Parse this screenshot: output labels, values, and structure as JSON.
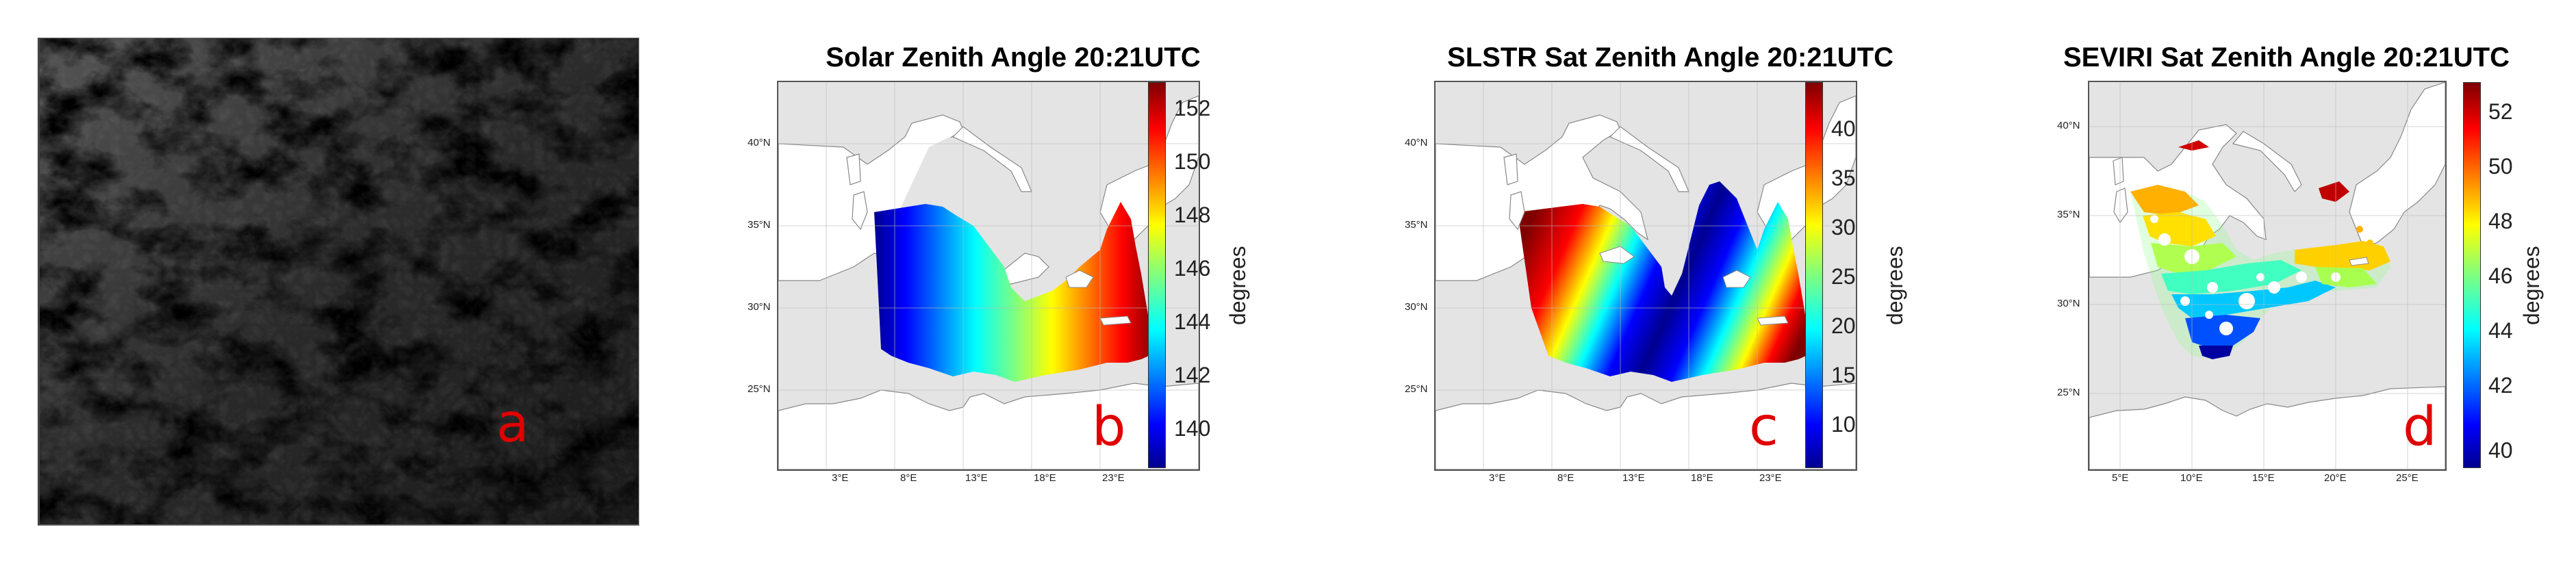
{
  "panels": [
    {
      "id": "a",
      "letter": "a"
    },
    {
      "id": "b",
      "letter": "b",
      "title": "Solar Zenith Angle 20:21UTC",
      "colorbar": {
        "label": "degrees",
        "min": 138.8,
        "max": 153.6,
        "ticks": [
          "152",
          "150",
          "148",
          "146",
          "144",
          "142",
          "140"
        ]
      },
      "lat_ticks": [
        "40°N",
        "35°N",
        "30°N",
        "25°N"
      ],
      "lon_ticks": [
        "3°E",
        "8°E",
        "13°E",
        "18°E",
        "23°E"
      ]
    },
    {
      "id": "c",
      "letter": "c",
      "title": "SLSTR Sat Zenith Angle 20:21UTC",
      "colorbar": {
        "label": "degrees",
        "min": 5.5,
        "max": 44.5,
        "ticks": [
          "40",
          "35",
          "30",
          "25",
          "20",
          "15",
          "10"
        ]
      },
      "lat_ticks": [
        "40°N",
        "35°N",
        "30°N",
        "25°N"
      ],
      "lon_ticks": [
        "3°E",
        "8°E",
        "13°E",
        "18°E",
        "23°E"
      ]
    },
    {
      "id": "d",
      "letter": "d",
      "title": "SEVIRI Sat Zenith Angle 20:21UTC",
      "colorbar": {
        "label": "degrees",
        "min": 40,
        "max": 53.2,
        "ticks": [
          "52",
          "50",
          "48",
          "46",
          "44",
          "42",
          "40"
        ]
      },
      "lat_ticks": [
        "40°N",
        "35°N",
        "30°N",
        "25°N"
      ],
      "lon_ticks": [
        "5°E",
        "10°E",
        "15°E",
        "20°E",
        "25°E"
      ]
    }
  ],
  "colors": {
    "jet_low": "#00008f",
    "jet_mid": "#7fff7f",
    "jet_high": "#7f0000",
    "letter": "#e00000",
    "land": "#ffffff",
    "sea_background": "#e4e4e4"
  }
}
